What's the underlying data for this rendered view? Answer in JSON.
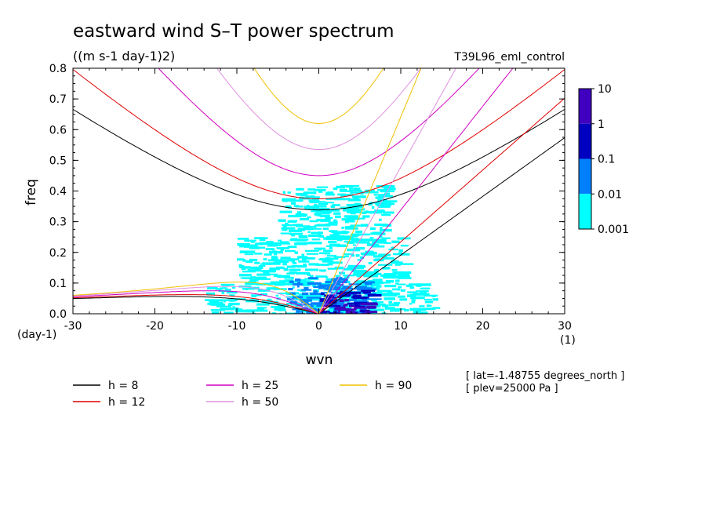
{
  "title": "eastward wind S–T power spectrum",
  "units": "((m s-1 day-1)2)",
  "run_label": "T39L96_eml_control",
  "info": [
    "[ lat=-1.48755 degrees_north ]",
    "[ plev=25000 Pa ]"
  ],
  "chart_data": {
    "type": "heatmap",
    "xlabel": "wvn",
    "ylabel": "freq",
    "x_unit": "(1)",
    "y_unit": "(day-1)",
    "xlim": [
      -30,
      30
    ],
    "ylim": [
      0,
      0.8
    ],
    "x_ticks": [
      "-30",
      "-20",
      "-10",
      "0",
      "10",
      "20",
      "30"
    ],
    "y_ticks": [
      "0.0",
      "0.1",
      "0.2",
      "0.3",
      "0.4",
      "0.5",
      "0.6",
      "0.7",
      "0.8"
    ],
    "colorbar": {
      "labels": [
        "10",
        "1",
        "0.1",
        "0.01",
        "0.001"
      ],
      "levels": [
        0.001,
        0.01,
        0.1,
        1,
        10
      ],
      "colors": [
        "#00ffff",
        "#0080ff",
        "#0000c0",
        "#4000c0"
      ]
    },
    "dispersion_curves": [
      {
        "label": "h =  8",
        "h": 8,
        "color": "#000000"
      },
      {
        "label": "h = 12",
        "h": 12,
        "color": "#e00000"
      },
      {
        "label": "h = 25",
        "h": 25,
        "color": "#d000c0"
      },
      {
        "label": "h = 50",
        "h": 50,
        "color": "#e090e0"
      },
      {
        "label": "h = 90",
        "h": 90,
        "color": "#f0c000"
      }
    ],
    "power_regions": [
      {
        "x": [
          -14,
          14
        ],
        "y": [
          0.0,
          0.1
        ],
        "level": 0.001
      },
      {
        "x": [
          -10,
          10
        ],
        "y": [
          0.1,
          0.25
        ],
        "level": 0.001
      },
      {
        "x": [
          -5,
          8
        ],
        "y": [
          0.25,
          0.42
        ],
        "level": 0.001
      },
      {
        "x": [
          -4,
          6
        ],
        "y": [
          0.0,
          0.12
        ],
        "level": 0.01
      },
      {
        "x": [
          0,
          6
        ],
        "y": [
          0.0,
          0.08
        ],
        "level": 0.1
      },
      {
        "x": [
          2,
          6
        ],
        "y": [
          0.0,
          0.05
        ],
        "level": 1
      }
    ]
  }
}
